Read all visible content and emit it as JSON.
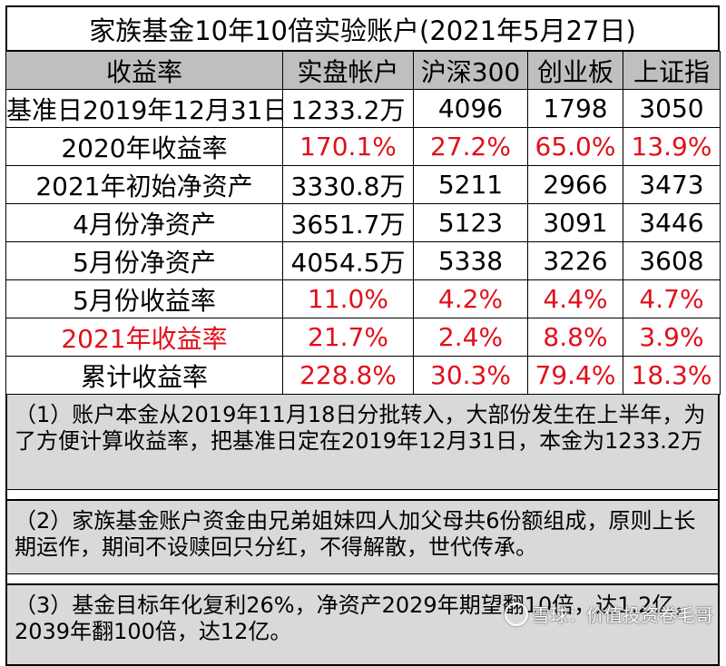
{
  "title": "家族基金10年10倍实验账户(2021年5月27日)",
  "table": {
    "headers": [
      "收益率",
      "实盘帐户",
      "沪深300",
      "创业板",
      "上证指"
    ],
    "rows": [
      {
        "label": "基准日2019年12月31日",
        "label_red": false,
        "values": [
          "1233.2万",
          "4096",
          "1798",
          "3050"
        ],
        "values_red": false
      },
      {
        "label": "2020年收益率",
        "label_red": false,
        "values": [
          "170.1%",
          "27.2%",
          "65.0%",
          "13.9%"
        ],
        "values_red": true
      },
      {
        "label": "2021年初始净资产",
        "label_red": false,
        "values": [
          "3330.8万",
          "5211",
          "2966",
          "3473"
        ],
        "values_red": false
      },
      {
        "label": "4月份净资产",
        "label_red": false,
        "values": [
          "3651.7万",
          "5123",
          "3091",
          "3446"
        ],
        "values_red": false
      },
      {
        "label": "5月份净资产",
        "label_red": false,
        "values": [
          "4054.5万",
          "5338",
          "3226",
          "3608"
        ],
        "values_red": false
      },
      {
        "label": "5月份收益率",
        "label_red": false,
        "values": [
          "11.0%",
          "4.2%",
          "4.4%",
          "4.7%"
        ],
        "values_red": true
      },
      {
        "label": "2021年收益率",
        "label_red": true,
        "values": [
          "21.7%",
          "2.4%",
          "8.8%",
          "3.9%"
        ],
        "values_red": true
      },
      {
        "label": "累计收益率",
        "label_red": false,
        "values": [
          "228.8%",
          "30.3%",
          "79.4%",
          "18.3%"
        ],
        "values_red": true
      }
    ]
  },
  "notes": [
    "（1）账户本金从2019年11月18日分批转入，大部份发生在上半年，为了方便计算收益率，把基准日定在2019年12月31日，本金为1233.2万",
    "（2）家族基金账户资金由兄弟姐妹四人加父母共6份额组成，原则上长期运作，期间不设赎回只分红，不得解散，世代传承。",
    "（3）基金目标年化复利26%，净资产2029年期望翻10倍，达1.2亿，2039年翻100倍，达12亿。"
  ],
  "watermark": "雪球：价值投资卷毛哥",
  "colors": {
    "red": "#e0101b",
    "header_bg": "#bfbfbf",
    "notes_bg": "#d9d9d9"
  }
}
